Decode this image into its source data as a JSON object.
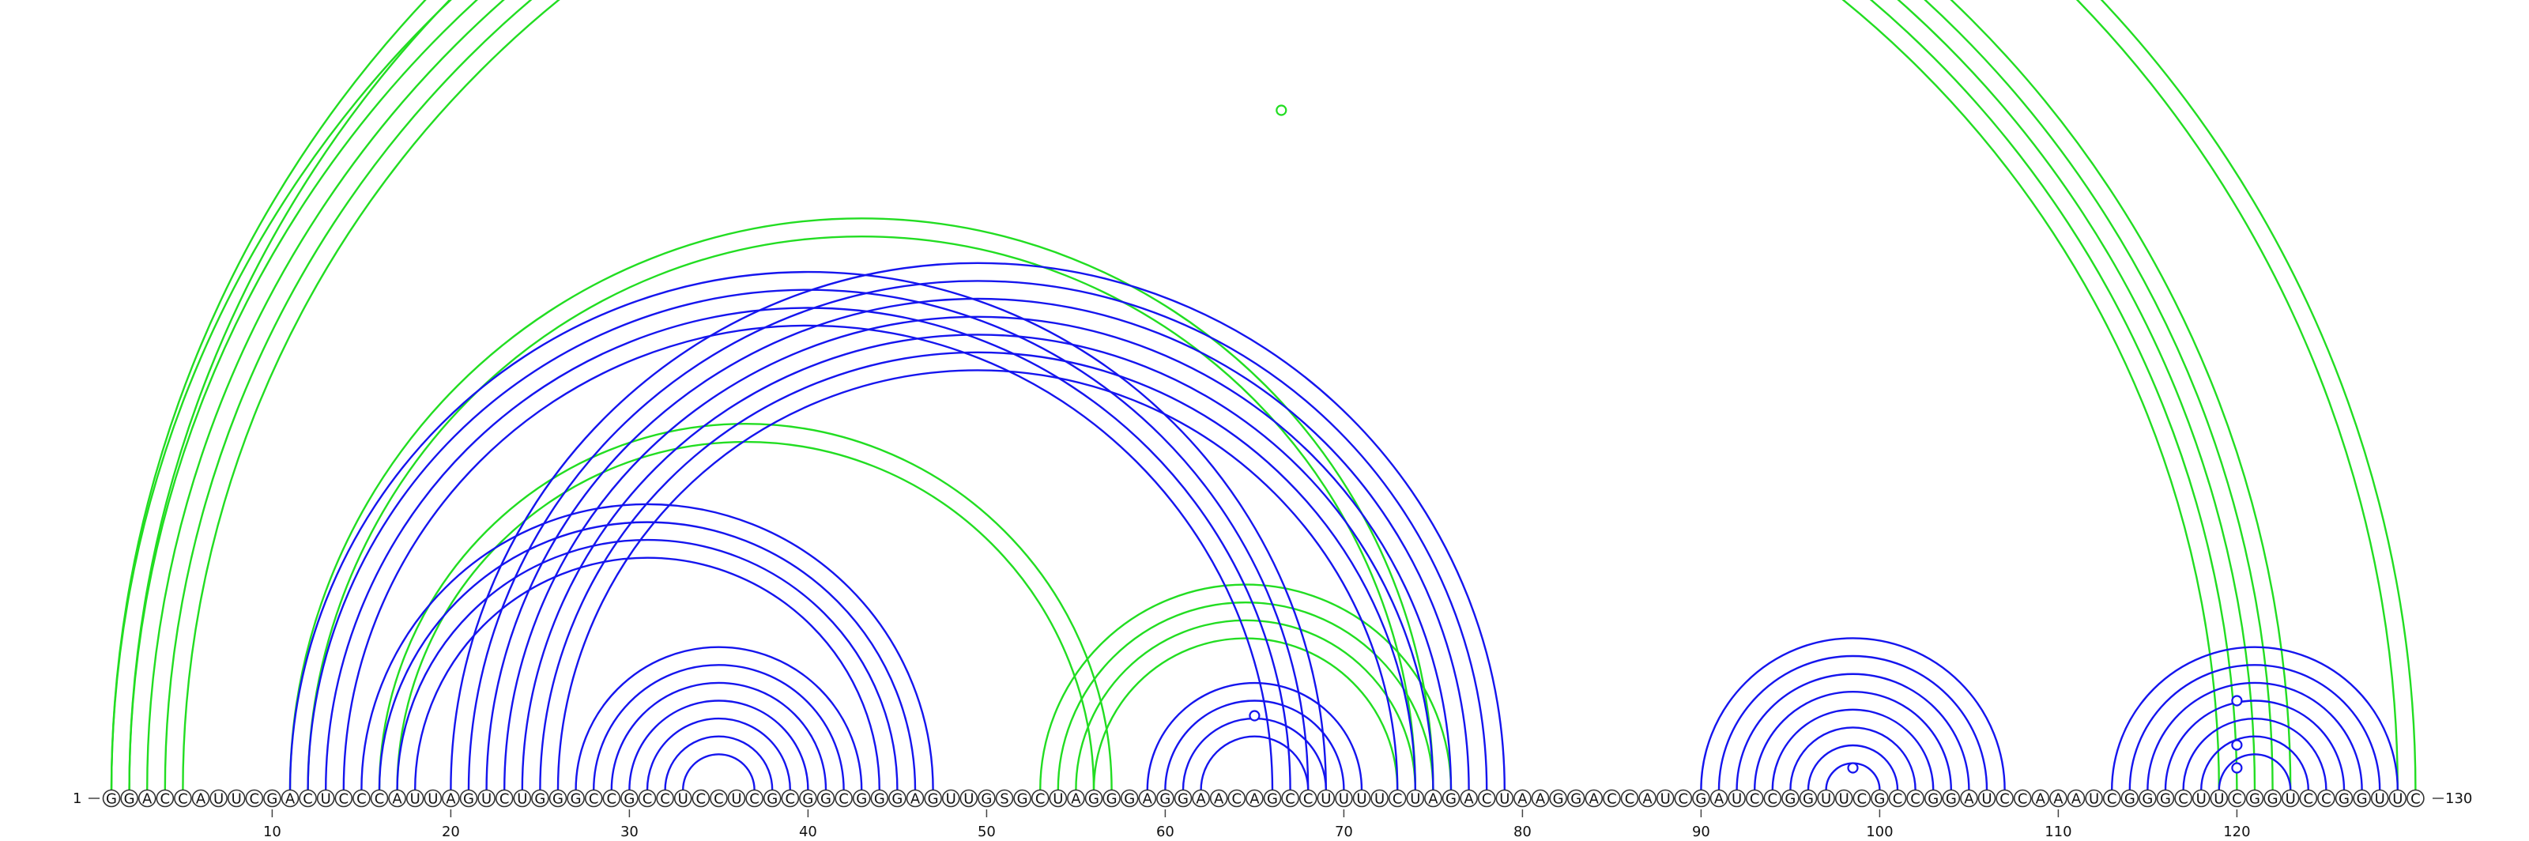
{
  "sequence": "GGACCAUUCGACUCCCAUUAGUCUGGGCCGCCUCCUCGCGGCGGGAGUUGSGCUAGGGAGGAACAGCCUUUUCUAGACUAAGGACCAUCGAUCCGGUUCGCCGGAUCCAAAUCGGGCUUCGGUCCGGUUC",
  "start_label": "1",
  "end_label": "130",
  "ticks": [
    10,
    20,
    30,
    40,
    50,
    60,
    70,
    80,
    90,
    100,
    110,
    120
  ],
  "colors": {
    "blue": "#1515ee",
    "green": "#22dd22"
  },
  "arcs": {
    "green": [
      [
        1,
        123
      ],
      [
        2,
        122
      ],
      [
        3,
        121
      ],
      [
        4,
        120
      ],
      [
        5,
        119
      ],
      [
        2,
        129
      ],
      [
        1,
        130
      ],
      [
        11,
        75
      ],
      [
        12,
        74
      ],
      [
        16,
        57
      ],
      [
        17,
        56
      ],
      [
        53,
        76
      ],
      [
        54,
        75
      ],
      [
        55,
        74
      ],
      [
        56,
        73
      ]
    ],
    "blue": [
      [
        11,
        69
      ],
      [
        12,
        68
      ],
      [
        13,
        67
      ],
      [
        14,
        66
      ],
      [
        15,
        47
      ],
      [
        16,
        46
      ],
      [
        17,
        45
      ],
      [
        18,
        44
      ],
      [
        20,
        79
      ],
      [
        21,
        78
      ],
      [
        22,
        77
      ],
      [
        23,
        76
      ],
      [
        24,
        75
      ],
      [
        25,
        74
      ],
      [
        26,
        73
      ],
      [
        27,
        43
      ],
      [
        28,
        42
      ],
      [
        29,
        41
      ],
      [
        30,
        40
      ],
      [
        31,
        39
      ],
      [
        32,
        38
      ],
      [
        33,
        37
      ],
      [
        59,
        71
      ],
      [
        60,
        70
      ],
      [
        61,
        69
      ],
      [
        62,
        68
      ],
      [
        90,
        107
      ],
      [
        91,
        106
      ],
      [
        92,
        105
      ],
      [
        93,
        104
      ],
      [
        94,
        103
      ],
      [
        95,
        102
      ],
      [
        96,
        101
      ],
      [
        97,
        100
      ],
      [
        113,
        129
      ],
      [
        114,
        128
      ],
      [
        115,
        127
      ],
      [
        116,
        126
      ],
      [
        117,
        125
      ],
      [
        118,
        124
      ],
      [
        119,
        123
      ]
    ]
  },
  "markers": [
    {
      "color": "green",
      "pos": 66.5,
      "height": 0.86
    },
    {
      "color": "blue",
      "pos": 65,
      "height": 0.094
    },
    {
      "color": "blue",
      "pos": 98.5,
      "height": 0.028
    },
    {
      "color": "blue",
      "pos": 120,
      "height": 0.113
    },
    {
      "color": "blue",
      "pos": 120,
      "height": 0.057
    },
    {
      "color": "blue",
      "pos": 120,
      "height": 0.028
    }
  ]
}
